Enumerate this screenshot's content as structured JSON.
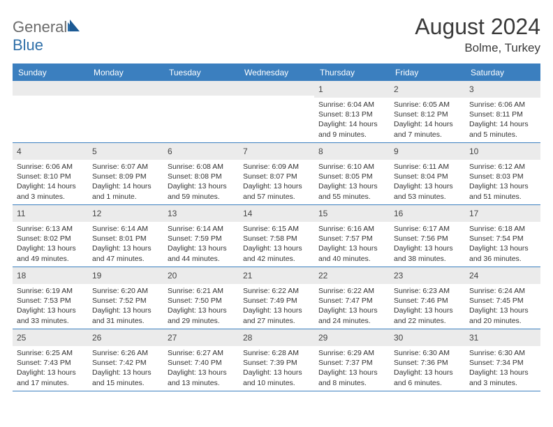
{
  "brand": {
    "part1": "General",
    "part2": "Blue"
  },
  "title": "August 2024",
  "location": "Bolme, Turkey",
  "colors": {
    "header_bg": "#3b7fbf",
    "daynum_bg": "#ebebeb",
    "text": "#333333",
    "brand_gray": "#6b6b6b",
    "brand_blue": "#2f6fa8"
  },
  "day_labels": [
    "Sunday",
    "Monday",
    "Tuesday",
    "Wednesday",
    "Thursday",
    "Friday",
    "Saturday"
  ],
  "weeks": [
    [
      {
        "blank": true
      },
      {
        "blank": true
      },
      {
        "blank": true
      },
      {
        "blank": true
      },
      {
        "n": "1",
        "sr": "6:04 AM",
        "ss": "8:13 PM",
        "dl": "14 hours and 9 minutes."
      },
      {
        "n": "2",
        "sr": "6:05 AM",
        "ss": "8:12 PM",
        "dl": "14 hours and 7 minutes."
      },
      {
        "n": "3",
        "sr": "6:06 AM",
        "ss": "8:11 PM",
        "dl": "14 hours and 5 minutes."
      }
    ],
    [
      {
        "n": "4",
        "sr": "6:06 AM",
        "ss": "8:10 PM",
        "dl": "14 hours and 3 minutes."
      },
      {
        "n": "5",
        "sr": "6:07 AM",
        "ss": "8:09 PM",
        "dl": "14 hours and 1 minute."
      },
      {
        "n": "6",
        "sr": "6:08 AM",
        "ss": "8:08 PM",
        "dl": "13 hours and 59 minutes."
      },
      {
        "n": "7",
        "sr": "6:09 AM",
        "ss": "8:07 PM",
        "dl": "13 hours and 57 minutes."
      },
      {
        "n": "8",
        "sr": "6:10 AM",
        "ss": "8:05 PM",
        "dl": "13 hours and 55 minutes."
      },
      {
        "n": "9",
        "sr": "6:11 AM",
        "ss": "8:04 PM",
        "dl": "13 hours and 53 minutes."
      },
      {
        "n": "10",
        "sr": "6:12 AM",
        "ss": "8:03 PM",
        "dl": "13 hours and 51 minutes."
      }
    ],
    [
      {
        "n": "11",
        "sr": "6:13 AM",
        "ss": "8:02 PM",
        "dl": "13 hours and 49 minutes."
      },
      {
        "n": "12",
        "sr": "6:14 AM",
        "ss": "8:01 PM",
        "dl": "13 hours and 47 minutes."
      },
      {
        "n": "13",
        "sr": "6:14 AM",
        "ss": "7:59 PM",
        "dl": "13 hours and 44 minutes."
      },
      {
        "n": "14",
        "sr": "6:15 AM",
        "ss": "7:58 PM",
        "dl": "13 hours and 42 minutes."
      },
      {
        "n": "15",
        "sr": "6:16 AM",
        "ss": "7:57 PM",
        "dl": "13 hours and 40 minutes."
      },
      {
        "n": "16",
        "sr": "6:17 AM",
        "ss": "7:56 PM",
        "dl": "13 hours and 38 minutes."
      },
      {
        "n": "17",
        "sr": "6:18 AM",
        "ss": "7:54 PM",
        "dl": "13 hours and 36 minutes."
      }
    ],
    [
      {
        "n": "18",
        "sr": "6:19 AM",
        "ss": "7:53 PM",
        "dl": "13 hours and 33 minutes."
      },
      {
        "n": "19",
        "sr": "6:20 AM",
        "ss": "7:52 PM",
        "dl": "13 hours and 31 minutes."
      },
      {
        "n": "20",
        "sr": "6:21 AM",
        "ss": "7:50 PM",
        "dl": "13 hours and 29 minutes."
      },
      {
        "n": "21",
        "sr": "6:22 AM",
        "ss": "7:49 PM",
        "dl": "13 hours and 27 minutes."
      },
      {
        "n": "22",
        "sr": "6:22 AM",
        "ss": "7:47 PM",
        "dl": "13 hours and 24 minutes."
      },
      {
        "n": "23",
        "sr": "6:23 AM",
        "ss": "7:46 PM",
        "dl": "13 hours and 22 minutes."
      },
      {
        "n": "24",
        "sr": "6:24 AM",
        "ss": "7:45 PM",
        "dl": "13 hours and 20 minutes."
      }
    ],
    [
      {
        "n": "25",
        "sr": "6:25 AM",
        "ss": "7:43 PM",
        "dl": "13 hours and 17 minutes."
      },
      {
        "n": "26",
        "sr": "6:26 AM",
        "ss": "7:42 PM",
        "dl": "13 hours and 15 minutes."
      },
      {
        "n": "27",
        "sr": "6:27 AM",
        "ss": "7:40 PM",
        "dl": "13 hours and 13 minutes."
      },
      {
        "n": "28",
        "sr": "6:28 AM",
        "ss": "7:39 PM",
        "dl": "13 hours and 10 minutes."
      },
      {
        "n": "29",
        "sr": "6:29 AM",
        "ss": "7:37 PM",
        "dl": "13 hours and 8 minutes."
      },
      {
        "n": "30",
        "sr": "6:30 AM",
        "ss": "7:36 PM",
        "dl": "13 hours and 6 minutes."
      },
      {
        "n": "31",
        "sr": "6:30 AM",
        "ss": "7:34 PM",
        "dl": "13 hours and 3 minutes."
      }
    ]
  ],
  "labels": {
    "sunrise": "Sunrise:",
    "sunset": "Sunset:",
    "daylight": "Daylight:"
  }
}
